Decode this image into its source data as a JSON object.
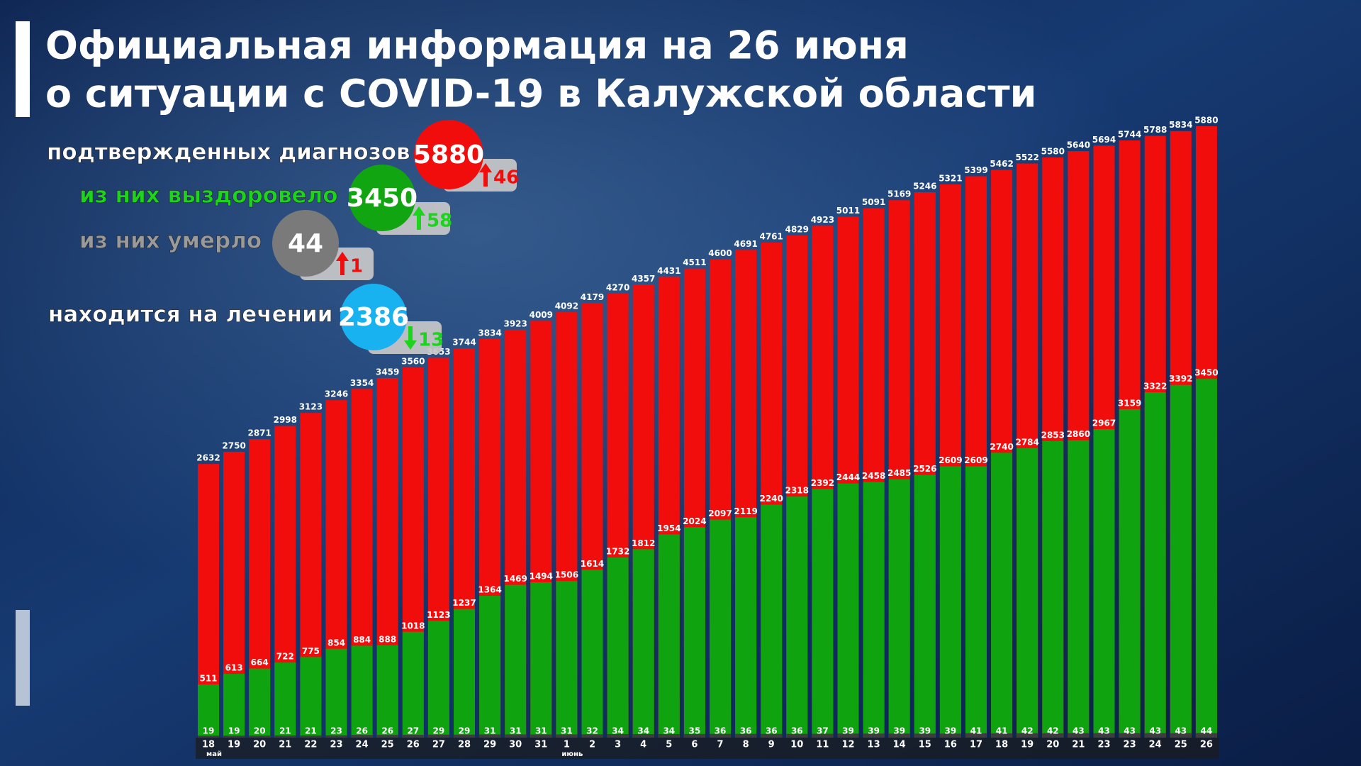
{
  "header": {
    "title_lines": [
      "Официальная информация на 26 июня",
      "о ситуации с COVID-19 в Калужской области"
    ]
  },
  "summary": [
    {
      "label": "подтвержденных диагнозов",
      "value": 5880,
      "change": 46,
      "direction": "up",
      "color": "#f20d0d"
    },
    {
      "label": "из них выздоровело",
      "value": 3450,
      "change": 58,
      "direction": "up",
      "color": "#11a611"
    },
    {
      "label": "из них умерло",
      "value": 44,
      "change": 1,
      "direction": "up",
      "color": "#7a7a7a"
    },
    {
      "label": "находится на лечении",
      "value": 2386,
      "change": 13,
      "direction": "down",
      "color": "#19b2f0"
    }
  ],
  "chart_data": {
    "type": "bar",
    "categories": [
      "18",
      "19",
      "20",
      "21",
      "22",
      "23",
      "24",
      "25",
      "26",
      "27",
      "28",
      "29",
      "30",
      "31",
      "1",
      "2",
      "3",
      "4",
      "5",
      "6",
      "7",
      "8",
      "9",
      "10",
      "11",
      "12",
      "13",
      "14",
      "15",
      "16",
      "17",
      "18",
      "19",
      "20",
      "21",
      "23",
      "23",
      "24",
      "25",
      "26"
    ],
    "month_labels": [
      "май",
      null,
      null,
      null,
      null,
      null,
      null,
      null,
      null,
      null,
      null,
      null,
      null,
      null,
      "июнь",
      null,
      null,
      null,
      null,
      null,
      null,
      null,
      null,
      null,
      null,
      null,
      null,
      null,
      null,
      null,
      null,
      null,
      null,
      null,
      null,
      null,
      null,
      null,
      null,
      null
    ],
    "series": [
      {
        "color": "#f20d0d",
        "values": [
          2632,
          2750,
          2871,
          2998,
          3123,
          3246,
          3354,
          3459,
          3560,
          3653,
          3744,
          3834,
          3923,
          4009,
          4092,
          4179,
          4270,
          4357,
          4431,
          4511,
          4600,
          4691,
          4761,
          4829,
          4923,
          5011,
          5091,
          5169,
          5246,
          5321,
          5399,
          5462,
          5522,
          5580,
          5640,
          5694,
          5744,
          5788,
          5834,
          5880
        ]
      },
      {
        "color": "#0fa30f",
        "values": [
          511,
          613,
          664,
          722,
          775,
          854,
          884,
          888,
          1018,
          1123,
          1237,
          1364,
          1469,
          1494,
          1506,
          1614,
          1732,
          1812,
          1954,
          2024,
          2097,
          2119,
          2240,
          2318,
          2392,
          2444,
          2458,
          2485,
          2526,
          2609,
          2609,
          2740,
          2784,
          2853,
          2860,
          2967,
          3159,
          3322,
          3392,
          3450
        ]
      },
      {
        "color": "#3d3d3d",
        "values": [
          19,
          19,
          20,
          21,
          21,
          23,
          26,
          26,
          27,
          29,
          29,
          31,
          31,
          31,
          31,
          32,
          34,
          34,
          34,
          35,
          36,
          36,
          36,
          36,
          37,
          39,
          39,
          39,
          39,
          39,
          41,
          41,
          42,
          42,
          43,
          43,
          43,
          43,
          43,
          44
        ]
      }
    ],
    "overlap": true
  }
}
